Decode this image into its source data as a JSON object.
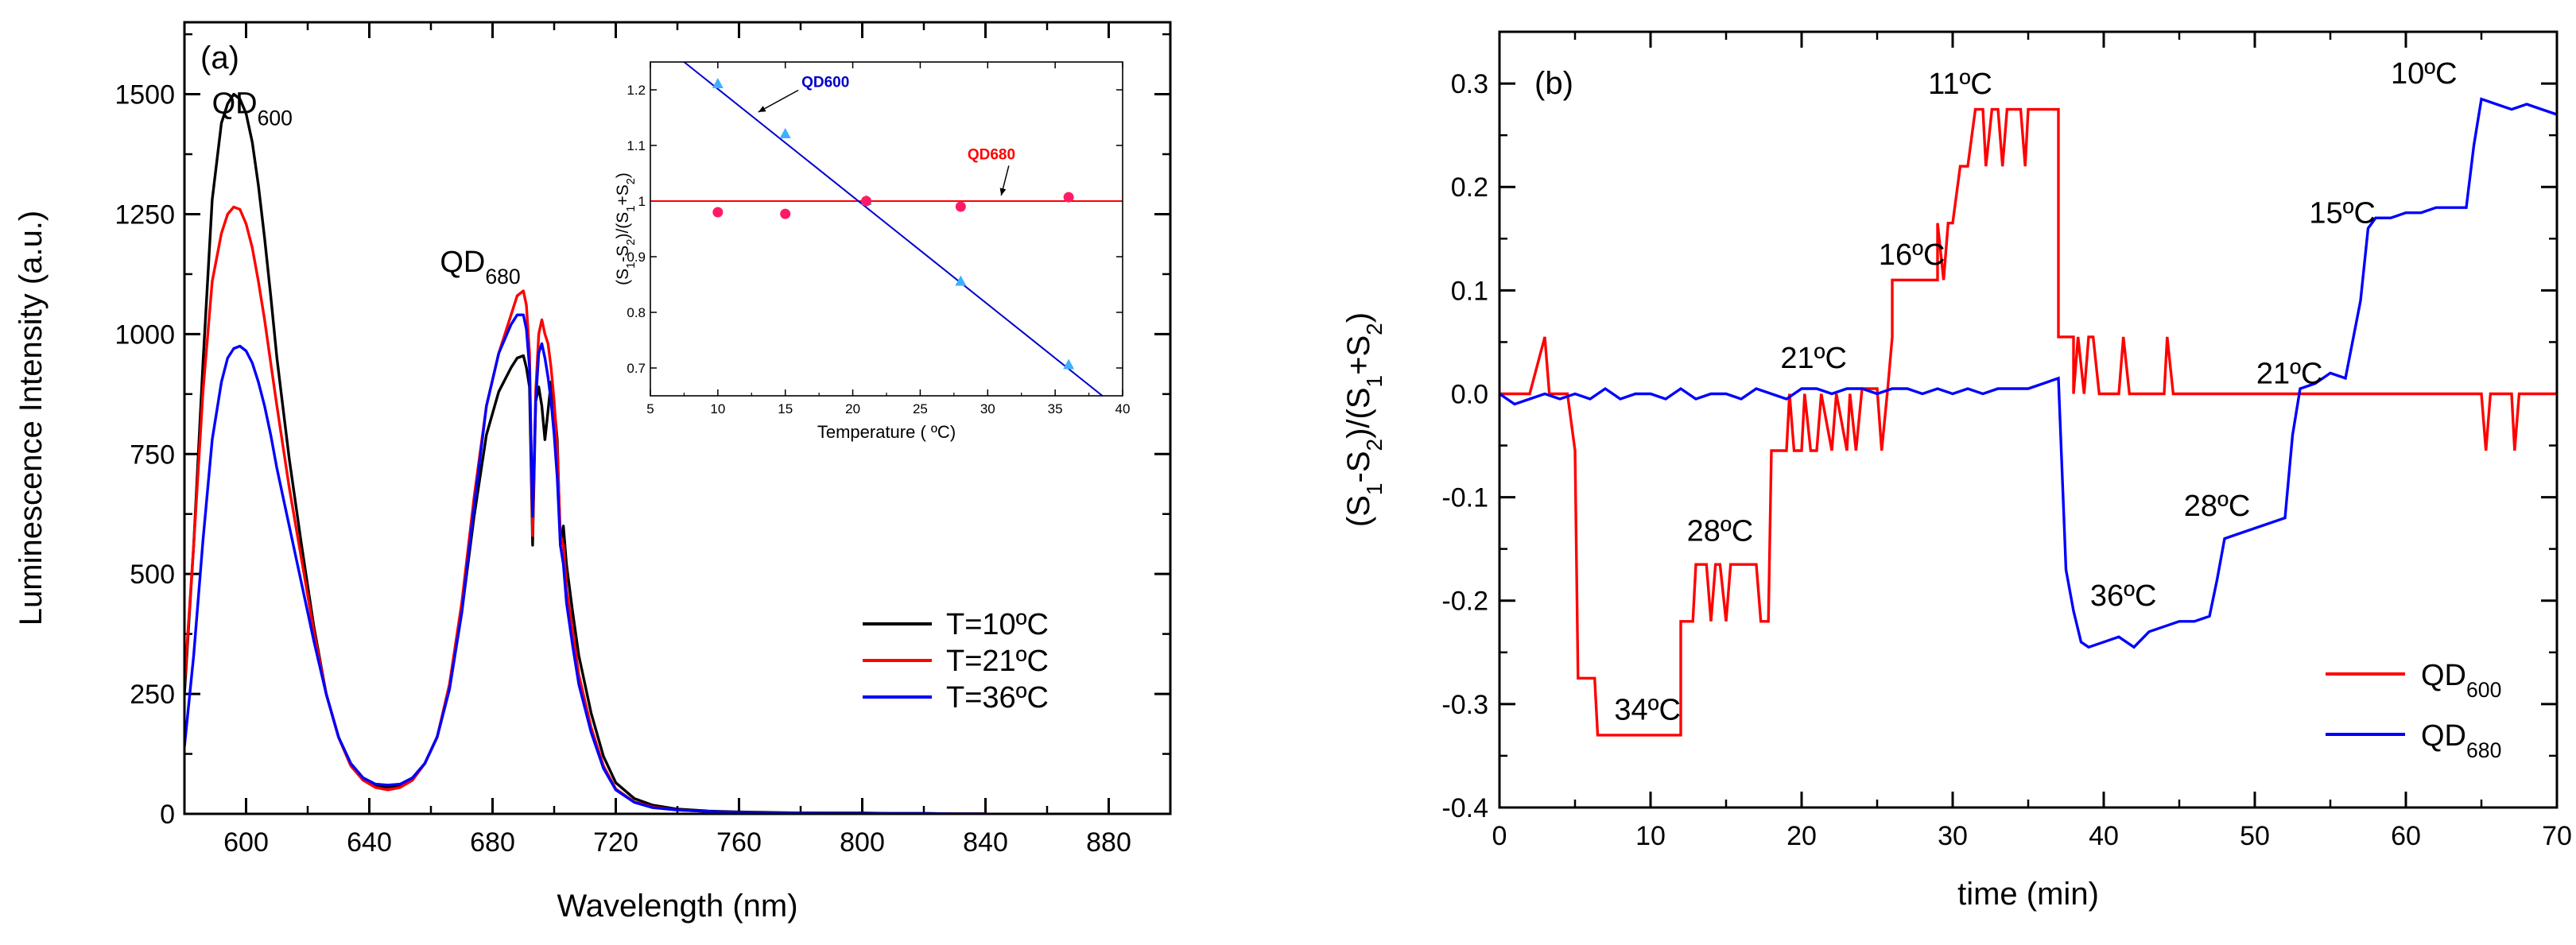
{
  "chart_data": [
    {
      "panel": "(a)",
      "type": "line",
      "xlabel": "Wavelength (nm)",
      "ylabel": "Luminescence Intensity (a.u.)",
      "xlim": [
        580,
        900
      ],
      "ylim": [
        0,
        1650
      ],
      "xticks": [
        600,
        640,
        680,
        720,
        760,
        800,
        840,
        880
      ],
      "yticks": [
        0,
        250,
        500,
        750,
        1000,
        1250,
        1500
      ],
      "legend_position": "bottom-right",
      "annotations": [
        {
          "base": "QD",
          "sub": "600",
          "x": 602,
          "y": 1460
        },
        {
          "base": "QD",
          "sub": "680",
          "x": 676,
          "y": 1130
        }
      ],
      "series": [
        {
          "name": "T=10ºC",
          "color": "#000000",
          "x": [
            580,
            583,
            586,
            589,
            592,
            594,
            596,
            598,
            600,
            602,
            604,
            606,
            608,
            610,
            614,
            618,
            622,
            626,
            630,
            634,
            638,
            642,
            646,
            650,
            654,
            658,
            662,
            666,
            670,
            674,
            678,
            682,
            686,
            688,
            690,
            691,
            692,
            693,
            694,
            695,
            696,
            697,
            698,
            699,
            700,
            701,
            702,
            703,
            704,
            706,
            708,
            712,
            716,
            720,
            726,
            732,
            740,
            750,
            760,
            770,
            780,
            790,
            800,
            810,
            820,
            830,
            840
          ],
          "y": [
            250,
            560,
            940,
            1280,
            1440,
            1480,
            1500,
            1490,
            1460,
            1400,
            1310,
            1200,
            1080,
            950,
            740,
            560,
            390,
            250,
            160,
            100,
            70,
            58,
            56,
            60,
            75,
            105,
            160,
            260,
            420,
            620,
            790,
            880,
            930,
            950,
            955,
            930,
            890,
            560,
            860,
            890,
            850,
            780,
            840,
            900,
            850,
            780,
            560,
            600,
            520,
            420,
            330,
            210,
            120,
            65,
            32,
            18,
            10,
            6,
            4,
            3,
            2,
            2,
            2,
            1,
            1,
            0,
            0
          ]
        },
        {
          "name": "T=21ºC",
          "color": "#ff0000",
          "x": [
            580,
            583,
            586,
            589,
            592,
            594,
            596,
            598,
            600,
            602,
            604,
            606,
            608,
            610,
            614,
            618,
            622,
            626,
            630,
            634,
            638,
            642,
            646,
            650,
            654,
            658,
            662,
            666,
            670,
            674,
            678,
            682,
            686,
            688,
            690,
            691,
            692,
            693,
            694,
            695,
            696,
            697,
            698,
            699,
            700,
            701,
            702,
            703,
            704,
            706,
            708,
            712,
            716,
            720,
            726,
            732,
            740,
            750,
            760,
            770,
            780,
            790,
            800,
            810,
            820,
            830,
            840
          ],
          "y": [
            270,
            560,
            880,
            1110,
            1210,
            1250,
            1265,
            1260,
            1230,
            1180,
            1110,
            1030,
            940,
            850,
            680,
            530,
            380,
            250,
            160,
            100,
            70,
            55,
            50,
            55,
            70,
            105,
            160,
            270,
            440,
            660,
            850,
            960,
            1040,
            1080,
            1090,
            1060,
            960,
            580,
            880,
            1000,
            1030,
            1000,
            980,
            930,
            860,
            760,
            580,
            560,
            470,
            380,
            290,
            180,
            100,
            52,
            25,
            14,
            8,
            5,
            3,
            2,
            2,
            1,
            1,
            1,
            1,
            0,
            0
          ]
        },
        {
          "name": "T=36ºC",
          "color": "#0000ff",
          "x": [
            580,
            583,
            586,
            589,
            592,
            594,
            596,
            598,
            600,
            602,
            604,
            606,
            608,
            610,
            614,
            618,
            622,
            626,
            630,
            634,
            638,
            642,
            646,
            650,
            654,
            658,
            662,
            666,
            670,
            674,
            678,
            682,
            686,
            688,
            690,
            691,
            692,
            693,
            694,
            695,
            696,
            697,
            698,
            699,
            700,
            701,
            702,
            703,
            704,
            706,
            708,
            712,
            716,
            720,
            726,
            732,
            740,
            750,
            760,
            770,
            780,
            790,
            800,
            810,
            820,
            830,
            840
          ],
          "y": [
            140,
            330,
            570,
            780,
            900,
            950,
            970,
            975,
            965,
            940,
            900,
            850,
            790,
            720,
            600,
            480,
            360,
            250,
            160,
            105,
            75,
            62,
            60,
            62,
            75,
            105,
            160,
            260,
            420,
            640,
            850,
            960,
            1020,
            1040,
            1040,
            1010,
            930,
            620,
            860,
            960,
            980,
            950,
            910,
            860,
            790,
            700,
            560,
            520,
            440,
            350,
            270,
            170,
            95,
            50,
            24,
            13,
            8,
            5,
            3,
            2,
            2,
            1,
            1,
            1,
            1,
            0,
            0
          ]
        }
      ],
      "inset": {
        "xlabel": "Temperature ( ºC)",
        "ylabel": "(S1-S2)/(S1+S2)",
        "xlim": [
          5,
          40
        ],
        "ylim": [
          0.65,
          1.25
        ],
        "xticks": [
          5,
          10,
          15,
          20,
          25,
          30,
          35,
          40
        ],
        "yticks": [
          0.7,
          0.8,
          0.9,
          1.0,
          1.1,
          1.2
        ],
        "QD600_points": {
          "x": [
            10,
            15,
            21,
            28,
            36
          ],
          "y": [
            1.21,
            1.12,
            1.0,
            0.855,
            0.705
          ],
          "color": "#3fb0ff"
        },
        "QD600_fit": {
          "x": [
            7.5,
            38.5
          ],
          "y": [
            1.25,
            0.65
          ],
          "color": "#0000cc"
        },
        "QD680_points": {
          "x": [
            10,
            15,
            21,
            28,
            36
          ],
          "y": [
            0.98,
            0.977,
            1.0,
            0.99,
            1.007
          ],
          "color": "#ff1a66"
        },
        "QD680_fit": {
          "y": 1.0,
          "color": "#ff0000"
        },
        "labels": [
          {
            "text": "QD600",
            "color": "#0000cc",
            "x": 16.2,
            "y": 1.205,
            "arrow_to_x": 13.0,
            "arrow_to_y": 1.16
          },
          {
            "text": "QD680",
            "color": "#ff0000",
            "x": 28.5,
            "y": 1.075,
            "arrow_to_x": 31.0,
            "arrow_to_y": 1.01
          }
        ]
      }
    },
    {
      "panel": "(b)",
      "type": "line",
      "xlabel": "time (min)",
      "ylabel": "(S1-S2)/(S1+S2)",
      "xlim": [
        0,
        70
      ],
      "ylim": [
        -0.4,
        0.35
      ],
      "xticks": [
        0,
        10,
        20,
        30,
        40,
        50,
        60,
        70
      ],
      "yticks": [
        -0.4,
        -0.3,
        -0.2,
        -0.1,
        0.0,
        0.1,
        0.2,
        0.3
      ],
      "legend_position": "bottom-right",
      "annotations": [
        {
          "text": "11ºC",
          "x": 30.5,
          "y": 0.29
        },
        {
          "text": "16ºC",
          "x": 27.3,
          "y": 0.125
        },
        {
          "text": "21ºC",
          "x": 20.8,
          "y": 0.025
        },
        {
          "text": "28ºC",
          "x": 14.6,
          "y": -0.142
        },
        {
          "text": "34ºC",
          "x": 9.8,
          "y": -0.315
        },
        {
          "text": "10ºC",
          "x": 61.2,
          "y": 0.3
        },
        {
          "text": "15ºC",
          "x": 55.8,
          "y": 0.165
        },
        {
          "text": "21ºC",
          "x": 52.3,
          "y": 0.01
        },
        {
          "text": "28ºC",
          "x": 47.5,
          "y": -0.118
        },
        {
          "text": "36ºC",
          "x": 41.3,
          "y": -0.205
        }
      ],
      "series": [
        {
          "name": "QD600",
          "color": "#ff0000",
          "x": [
            0,
            2,
            3,
            3.3,
            4.5,
            5,
            5.2,
            6.3,
            6.5,
            7,
            7,
            12,
            12,
            12.8,
            13,
            13,
            13.7,
            14,
            14.3,
            14.6,
            15,
            15.3,
            15.6,
            16.5,
            17,
            17.3,
            17.8,
            18,
            18,
            19,
            19.2,
            19.5,
            20,
            20.2,
            20.6,
            21,
            21.3,
            22,
            22.3,
            23,
            23.2,
            23.6,
            24,
            25,
            25.3,
            25.7,
            26,
            26,
            29,
            29,
            29.4,
            29.7,
            30,
            30.5,
            31,
            31.5,
            32,
            32.2,
            32.6,
            33,
            33.3,
            33.6,
            34,
            34.5,
            34.8,
            35,
            35.5,
            36,
            37,
            37,
            38,
            38,
            38.3,
            38.7,
            39,
            39.3,
            39.7,
            40,
            41,
            41.3,
            41.7,
            42,
            44,
            44.2,
            44.6,
            45,
            46,
            46.1,
            46.5,
            65,
            65.3,
            65.6,
            66,
            67,
            67.2,
            67.5,
            70
          ],
          "y": [
            0,
            0,
            0.055,
            0,
            0,
            -0.055,
            -0.275,
            -0.275,
            -0.33,
            -0.33,
            -0.33,
            -0.33,
            -0.22,
            -0.22,
            -0.165,
            -0.165,
            -0.165,
            -0.22,
            -0.165,
            -0.165,
            -0.22,
            -0.165,
            -0.165,
            -0.165,
            -0.165,
            -0.22,
            -0.22,
            -0.055,
            -0.055,
            -0.055,
            0,
            -0.055,
            -0.055,
            0,
            -0.055,
            -0.055,
            0,
            -0.055,
            0,
            -0.055,
            0,
            -0.055,
            0.005,
            0.005,
            -0.055,
            0.005,
            0.055,
            0.11,
            0.11,
            0.165,
            0.11,
            0.165,
            0.165,
            0.22,
            0.22,
            0.275,
            0.275,
            0.22,
            0.275,
            0.275,
            0.22,
            0.275,
            0.275,
            0.275,
            0.22,
            0.275,
            0.275,
            0.275,
            0.275,
            0.055,
            0.055,
            0,
            0.055,
            0,
            0.055,
            0.055,
            0,
            0,
            0,
            0.055,
            0,
            0,
            0,
            0.055,
            0,
            0,
            0,
            0,
            0,
            0,
            -0.055,
            0,
            0,
            0,
            -0.055,
            0,
            0
          ]
        },
        {
          "name": "QD680",
          "color": "#0000ff",
          "x": [
            0,
            1,
            2,
            3,
            4,
            5,
            6,
            7,
            8,
            9,
            10,
            11,
            12,
            13,
            14,
            15,
            16,
            17,
            18,
            19,
            20,
            21,
            22,
            23,
            24,
            25,
            26,
            27,
            28,
            29,
            30,
            31,
            32,
            33,
            34,
            35,
            36,
            37,
            37.5,
            38,
            38.5,
            39,
            40,
            41,
            42,
            43,
            44,
            45,
            46,
            47,
            47.5,
            48,
            49,
            50,
            51,
            52,
            52.5,
            53,
            54,
            55,
            56,
            57,
            57.5,
            58,
            59,
            60,
            61,
            62,
            63,
            64,
            64.5,
            65,
            66,
            67,
            68,
            69,
            70
          ],
          "y": [
            0,
            -0.01,
            -0.005,
            0,
            -0.005,
            0,
            -0.005,
            0.005,
            -0.005,
            0,
            0,
            -0.005,
            0.005,
            -0.005,
            0,
            0,
            -0.005,
            0.005,
            0,
            -0.005,
            0.005,
            0.005,
            0,
            0.005,
            0.005,
            0,
            0.005,
            0.005,
            0,
            0.005,
            0,
            0.005,
            0,
            0.005,
            0.005,
            0.005,
            0.01,
            0.015,
            -0.17,
            -0.21,
            -0.24,
            -0.245,
            -0.24,
            -0.235,
            -0.245,
            -0.23,
            -0.225,
            -0.22,
            -0.22,
            -0.215,
            -0.18,
            -0.14,
            -0.135,
            -0.13,
            -0.125,
            -0.12,
            -0.04,
            0.005,
            0.01,
            0.02,
            0.015,
            0.09,
            0.16,
            0.17,
            0.17,
            0.175,
            0.175,
            0.18,
            0.18,
            0.18,
            0.24,
            0.285,
            0.28,
            0.275,
            0.28,
            0.275,
            0.27
          ]
        }
      ]
    }
  ]
}
